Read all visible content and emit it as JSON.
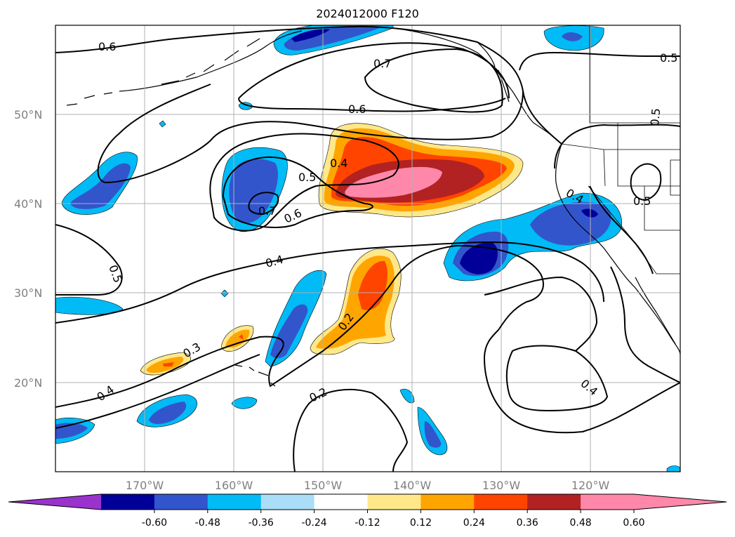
{
  "title": "2024012000 F120",
  "map": {
    "lat_labels": [
      "50°N",
      "40°N",
      "30°N",
      "20°N"
    ],
    "lon_labels": [
      "170°W",
      "160°W",
      "150°W",
      "140°W",
      "130°W",
      "120°W"
    ],
    "contour_labels": [
      "0.6",
      "0.7",
      "0.6",
      "0.5",
      "0.5",
      "0.4",
      "0.5",
      "0.7",
      "0.6",
      "0.4",
      "0.5",
      "0.4",
      "0.3",
      "0.2",
      "0.4",
      "0.2",
      "0.4",
      "0.5"
    ]
  },
  "colorbar": {
    "ticks": [
      "-0.60",
      "-0.48",
      "-0.36",
      "-0.24",
      "-0.12",
      "0.12",
      "0.24",
      "0.36",
      "0.48",
      "0.60"
    ],
    "colors": [
      "#9933cc",
      "#000099",
      "#3355cc",
      "#00bbf5",
      "#aaddf7",
      "#ffffff",
      "#ffe88a",
      "#ffa500",
      "#ff4400",
      "#b22222",
      "#ff88aa",
      "#ff88aa"
    ]
  }
}
